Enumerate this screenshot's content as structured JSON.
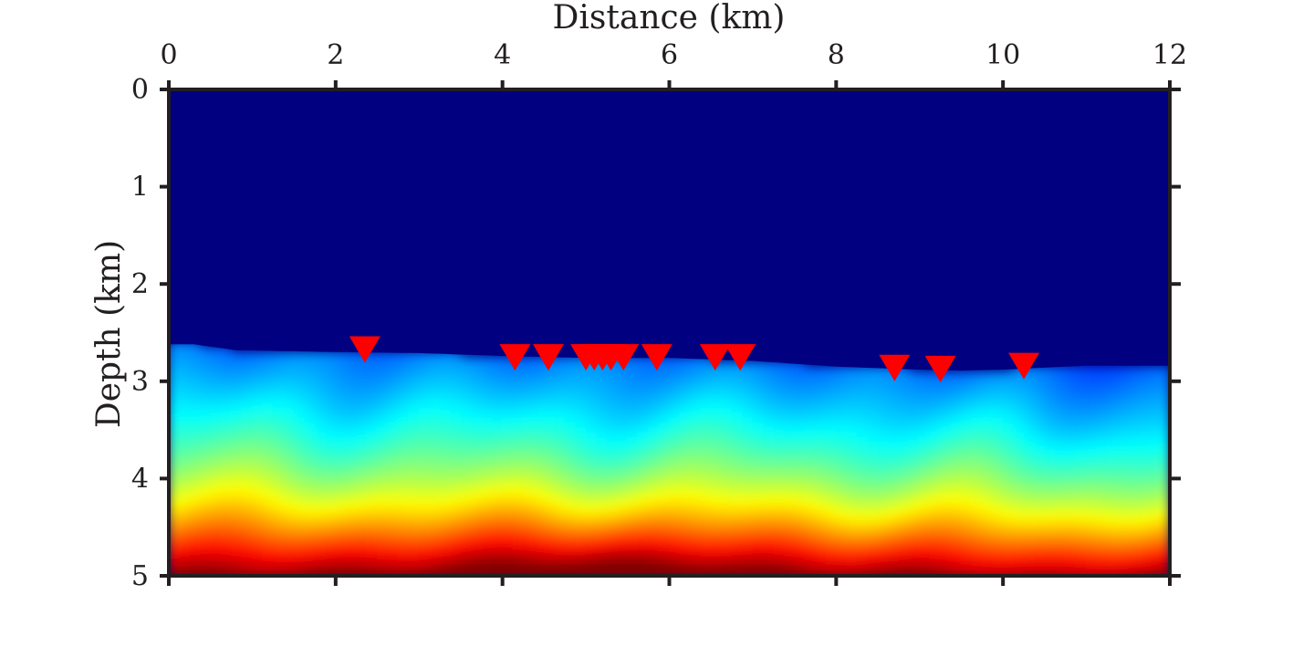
{
  "chart_data": {
    "type": "heatmap",
    "title": "",
    "xlabel": "Distance (km)",
    "ylabel": "Depth (km)",
    "xlim": [
      0,
      12
    ],
    "ylim": [
      0,
      5
    ],
    "y_inverted": true,
    "x_axis_position": "top",
    "x_ticks": [
      "0",
      "2",
      "4",
      "6",
      "8",
      "10",
      "12"
    ],
    "y_ticks": [
      "0",
      "1",
      "2",
      "3",
      "4",
      "5"
    ],
    "grid": false,
    "colormap": "jet",
    "colors": {
      "background_above_surface": "#000080",
      "receiver_marker": "#ff0000",
      "axis": "#231f20"
    },
    "surface_profile": {
      "x": [
        0,
        0.3,
        0.8,
        2,
        3,
        4,
        5,
        6,
        7,
        8,
        9,
        9.5,
        10,
        10.5,
        11,
        12
      ],
      "depth": [
        2.62,
        2.62,
        2.68,
        2.7,
        2.71,
        2.74,
        2.76,
        2.76,
        2.79,
        2.85,
        2.88,
        2.89,
        2.88,
        2.86,
        2.84,
        2.84
      ]
    },
    "receivers": {
      "name": "receivers",
      "x": [
        2.35,
        4.15,
        4.55,
        5.0,
        5.1,
        5.2,
        5.3,
        5.45,
        5.85,
        6.55,
        6.85,
        8.7,
        9.25,
        10.25
      ],
      "depth": [
        2.66,
        2.74,
        2.74,
        2.74,
        2.74,
        2.74,
        2.74,
        2.74,
        2.74,
        2.74,
        2.74,
        2.85,
        2.86,
        2.83
      ]
    }
  }
}
